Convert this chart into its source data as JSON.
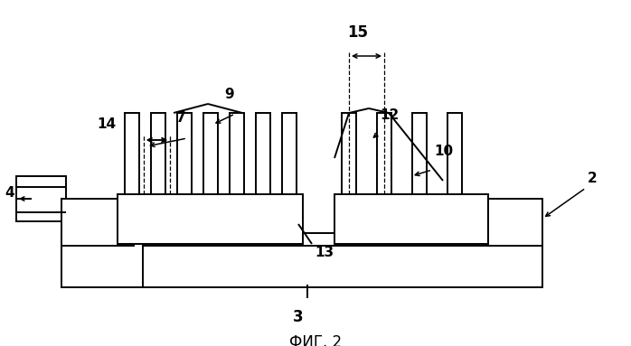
{
  "title": "ФИГ. 2",
  "background_color": "#ffffff",
  "line_color": "#000000",
  "fig_width": 6.98,
  "fig_height": 3.83,
  "dpi": 100
}
